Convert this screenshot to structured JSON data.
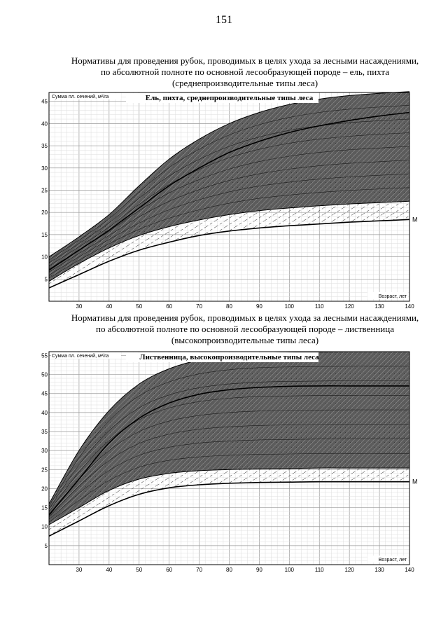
{
  "page": {
    "number": "151"
  },
  "headings": [
    {
      "lines": [
        "Нормативы для проведения рубок, проводимых в целях ухода за лесными насаждениями,",
        "по абсолютной полноте по основной лесообразующей породе – ель, пихта",
        "(среднепроизводительные типы леса)"
      ]
    },
    {
      "lines": [
        "Нормативы для проведения рубок, проводимых в целях ухода за лесными насаждениями,",
        "по абсолютной полноте по основной лесообразующей породе – лиственница",
        "(высокопроизводительные типы леса)"
      ]
    }
  ],
  "chart_data": [
    {
      "type": "area",
      "title": "Ель, пихта, среднепроизводительные типы леса",
      "ylabel": "Сумма пл. сечений, м²/га",
      "xlabel": "Возраст, лет",
      "xlim": [
        20,
        140
      ],
      "ylim": [
        0,
        47
      ],
      "xticks": [
        30,
        40,
        50,
        60,
        70,
        80,
        90,
        100,
        110,
        120,
        130,
        140
      ],
      "yticks": [
        5,
        10,
        15,
        20,
        25,
        30,
        35,
        40,
        45
      ],
      "grid": true,
      "curve_label": "М",
      "x": [
        20,
        30,
        40,
        50,
        60,
        70,
        80,
        90,
        100,
        110,
        120,
        130,
        140
      ],
      "series": [
        {
          "name": "М",
          "values": [
            3.0,
            6.0,
            9.0,
            11.5,
            13.3,
            14.8,
            15.8,
            16.5,
            17.0,
            17.4,
            17.8,
            18.1,
            18.4
          ]
        },
        {
          "values": [
            4.5,
            8.5,
            12.0,
            14.8,
            16.8,
            18.3,
            19.5,
            20.4,
            21.0,
            21.5,
            21.9,
            22.2,
            22.5
          ]
        },
        {
          "values": [
            7.0,
            11.5,
            16.0,
            21.0,
            26.0,
            30.0,
            33.5,
            36.0,
            38.0,
            39.5,
            40.7,
            41.7,
            42.5
          ]
        },
        {
          "values": [
            10.0,
            14.5,
            19.5,
            26.0,
            32.0,
            36.5,
            40.0,
            42.5,
            44.3,
            45.5,
            46.3,
            46.8,
            47.2
          ]
        }
      ]
    },
    {
      "type": "area",
      "title": "Лиственница, высокопроизводительные типы леса",
      "ylabel": "Сумма пл. сечений, м²/га",
      "xlabel": "Возраст, лет",
      "xlim": [
        20,
        140
      ],
      "ylim": [
        0,
        56
      ],
      "xticks": [
        30,
        40,
        50,
        60,
        70,
        80,
        90,
        100,
        110,
        120,
        130,
        140
      ],
      "yticks": [
        5,
        10,
        15,
        20,
        25,
        30,
        35,
        40,
        45,
        50,
        55
      ],
      "grid": true,
      "curve_label": "М",
      "x": [
        20,
        30,
        40,
        50,
        60,
        70,
        80,
        90,
        100,
        110,
        120,
        130,
        140
      ],
      "series": [
        {
          "name": "М",
          "values": [
            7.5,
            11.5,
            15.5,
            18.5,
            20.2,
            21.0,
            21.4,
            21.6,
            21.7,
            21.8,
            21.8,
            21.8,
            21.8
          ]
        },
        {
          "values": [
            10.5,
            15.0,
            19.5,
            22.5,
            24.0,
            24.7,
            25.0,
            25.2,
            25.3,
            25.4,
            25.4,
            25.4,
            25.4
          ]
        },
        {
          "values": [
            13.0,
            22.5,
            32.0,
            38.5,
            42.5,
            44.8,
            46.0,
            46.6,
            46.9,
            47.0,
            47.0,
            47.0,
            47.0
          ]
        },
        {
          "values": [
            16.0,
            30.0,
            40.5,
            47.5,
            51.5,
            53.8,
            55.0,
            55.6,
            55.8,
            55.9,
            56.0,
            56.0,
            56.0
          ]
        }
      ]
    }
  ]
}
